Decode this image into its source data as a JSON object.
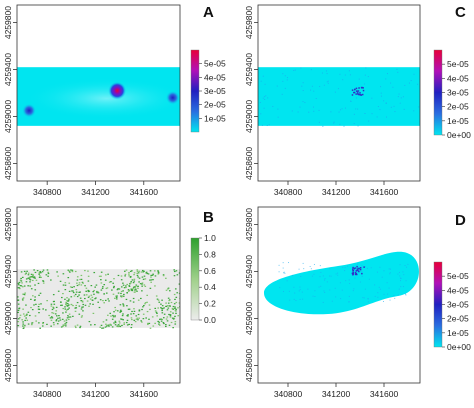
{
  "chart_data": [
    {
      "panel_label": "A",
      "type": "heatmap",
      "x_ticks": [
        "340800",
        "341200",
        "341600"
      ],
      "y_ticks": [
        "4258600",
        "4259000",
        "4259400",
        "4259800"
      ],
      "xlim": [
        340550,
        341900
      ],
      "ylim": [
        4258450,
        4259950
      ],
      "band_ylim": [
        4258920,
        4259420
      ],
      "colorbar": {
        "ticks": [
          "1e-05",
          "2e-05",
          "3e-05",
          "4e-05",
          "5e-05"
        ],
        "range": [
          0,
          6e-05
        ]
      },
      "hotspots": [
        {
          "x": 340650,
          "y": 4259050,
          "value": 3e-05
        },
        {
          "x": 341380,
          "y": 4259220,
          "value": 5e-05
        },
        {
          "x": 341840,
          "y": 4259160,
          "value": 3e-05
        }
      ]
    },
    {
      "panel_label": "B",
      "type": "heatmap",
      "x_ticks": [
        "340800",
        "341200",
        "341600"
      ],
      "y_ticks": [
        "4258600",
        "4259000",
        "4259400",
        "4259800"
      ],
      "xlim": [
        340550,
        341900
      ],
      "ylim": [
        4258450,
        4259950
      ],
      "band_ylim": [
        4258920,
        4259420
      ],
      "colorbar": {
        "ticks": [
          "0.0",
          "0.2",
          "0.4",
          "0.6",
          "0.8",
          "1.0"
        ],
        "range": [
          0,
          1
        ]
      }
    },
    {
      "panel_label": "C",
      "type": "heatmap",
      "x_ticks": [
        "340800",
        "341200",
        "341600"
      ],
      "y_ticks": [
        "4258600",
        "4259000",
        "4259400",
        "4259800"
      ],
      "xlim": [
        340550,
        341900
      ],
      "ylim": [
        4258450,
        4259950
      ],
      "band_ylim": [
        4258920,
        4259420
      ],
      "colorbar": {
        "ticks": [
          "0e+00",
          "1e-05",
          "2e-05",
          "3e-05",
          "4e-05",
          "5e-05"
        ],
        "range": [
          0,
          6e-05
        ]
      }
    },
    {
      "panel_label": "D",
      "type": "heatmap",
      "x_ticks": [
        "340800",
        "341200",
        "341600"
      ],
      "y_ticks": [
        "4258600",
        "4259000",
        "4259400",
        "4259800"
      ],
      "xlim": [
        340550,
        341900
      ],
      "ylim": [
        4258450,
        4259950
      ],
      "colorbar": {
        "ticks": [
          "0e+00",
          "1e-05",
          "2e-05",
          "3e-05",
          "4e-05",
          "5e-05"
        ],
        "range": [
          0,
          6e-05
        ]
      }
    }
  ],
  "colors": {
    "band": "#00e5f0",
    "colorbar_low": "#00e5f0",
    "colorbar_mid": "#2020c0",
    "colorbar_high": "#e8003a",
    "b_low": "#e8e8e8",
    "b_high": "#2ea02e"
  }
}
